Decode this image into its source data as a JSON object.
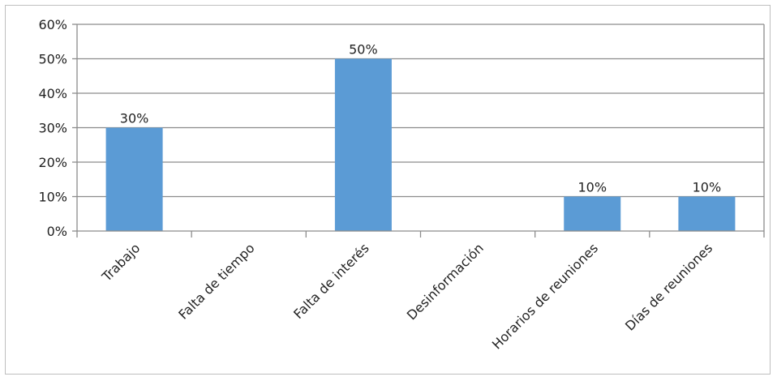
{
  "chart_data": {
    "type": "bar",
    "categories": [
      "Trabajo",
      "Falta de tiempo",
      "Falta de interés",
      "Desinformación",
      "Horarios de reuniones",
      "Días de reuniones"
    ],
    "values": [
      30,
      0,
      50,
      0,
      10,
      10
    ],
    "data_labels": [
      "30%",
      "",
      "50%",
      "",
      "10%",
      "10%"
    ],
    "yticks": [
      "0%",
      "10%",
      "20%",
      "30%",
      "40%",
      "50%",
      "60%"
    ],
    "ylim": [
      0,
      60
    ],
    "grid": true,
    "legend": "none",
    "bar_color": "#5b9bd5",
    "title": "",
    "xlabel": "",
    "ylabel": ""
  }
}
